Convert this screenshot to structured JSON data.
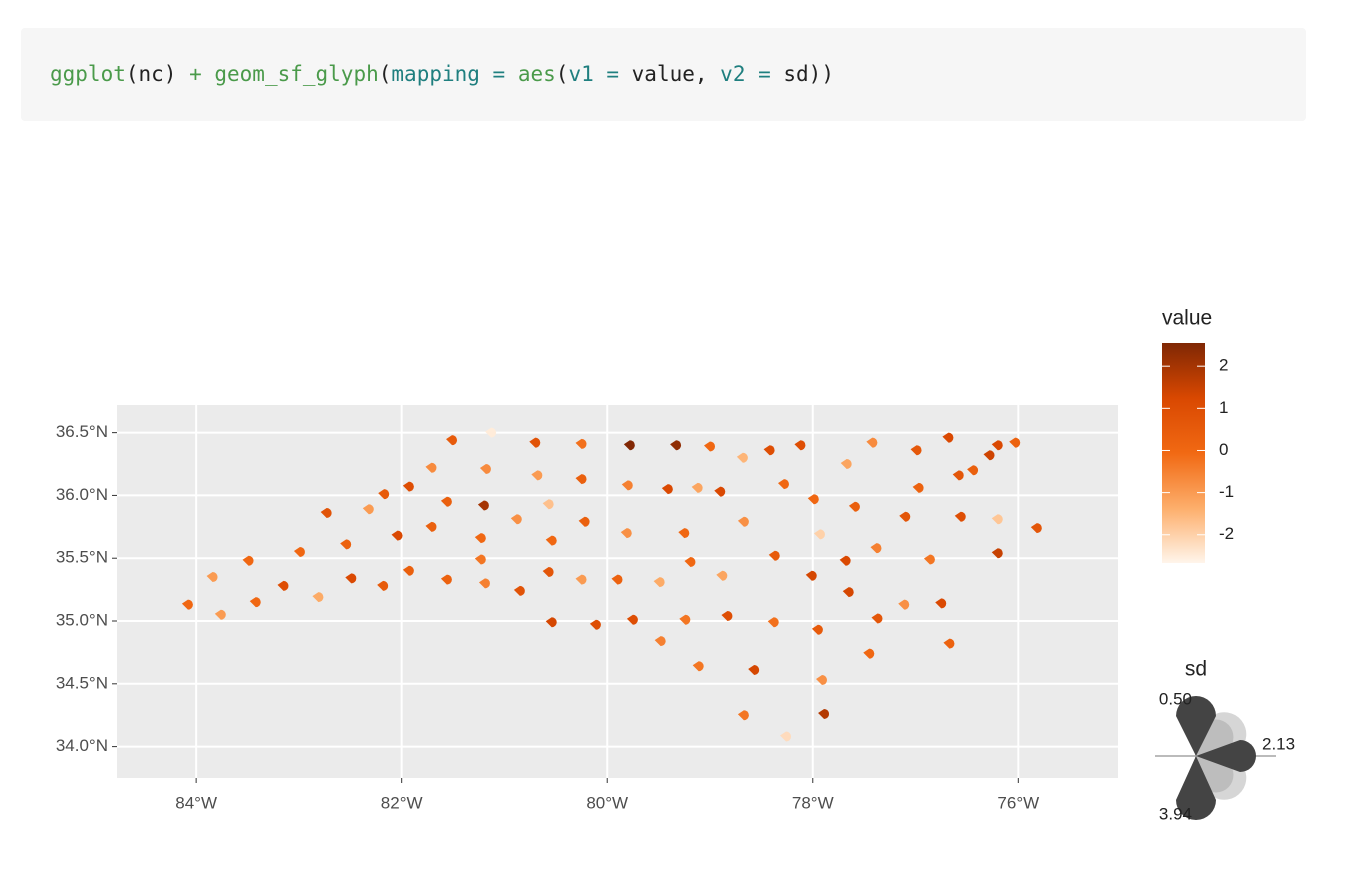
{
  "code": [
    "ggplot",
    "(nc) ",
    "+ ",
    "geom_sf_glyph",
    "(",
    "mapping = ",
    "aes",
    "(",
    "v1 = ",
    "value, ",
    "v2 = ",
    "sd))"
  ],
  "chart_data": {
    "type": "scatter",
    "x": [
      -84.08,
      -83.84,
      -83.76,
      -83.49,
      -83.42,
      -83.15,
      -82.99,
      -82.81,
      -82.73,
      -82.54,
      -82.49,
      -82.32,
      -82.17,
      -82.18,
      -82.04,
      -81.93,
      -81.93,
      -81.71,
      -81.71,
      -81.56,
      -81.56,
      -81.51,
      -81.2,
      -81.23,
      -81.23,
      -81.19,
      -81.18,
      -81.13,
      -80.88,
      -80.85,
      -80.7,
      -80.68,
      -80.57,
      -80.57,
      -80.54,
      -80.54,
      -80.25,
      -80.25,
      -80.25,
      -80.22,
      -80.11,
      -79.9,
      -79.81,
      -79.8,
      -79.78,
      -79.75,
      -79.49,
      -79.48,
      -79.41,
      -79.33,
      -79.25,
      -79.24,
      -79.19,
      -79.12,
      -79.11,
      -79.0,
      -78.9,
      -78.88,
      -78.83,
      -78.68,
      -78.67,
      -78.67,
      -78.57,
      -78.42,
      -78.38,
      -78.37,
      -78.28,
      -78.26,
      -78.12,
      -78.01,
      -77.99,
      -77.95,
      -77.93,
      -77.91,
      -77.89,
      -77.68,
      -77.67,
      -77.65,
      -77.59,
      -77.45,
      -77.42,
      -77.38,
      -77.37,
      -77.1,
      -77.11,
      -76.99,
      -76.97,
      -76.86,
      -76.75,
      -76.68,
      -76.67,
      -76.58,
      -76.56,
      -76.44,
      -76.28,
      -76.2,
      -76.2,
      -76.2,
      -76.03,
      -75.82
    ],
    "y": [
      35.13,
      35.35,
      35.05,
      35.48,
      35.15,
      35.28,
      35.55,
      35.19,
      35.86,
      35.61,
      35.34,
      35.89,
      36.01,
      35.28,
      35.68,
      36.07,
      35.4,
      36.22,
      35.75,
      35.95,
      35.33,
      36.44,
      35.92,
      35.66,
      35.49,
      35.3,
      36.21,
      36.5,
      35.81,
      35.24,
      36.42,
      36.16,
      35.93,
      35.39,
      35.64,
      34.99,
      35.33,
      36.41,
      36.13,
      35.79,
      34.97,
      35.33,
      35.7,
      36.08,
      36.4,
      35.01,
      35.31,
      34.84,
      36.05,
      36.4,
      35.7,
      35.01,
      35.47,
      36.06,
      34.64,
      36.39,
      36.03,
      35.36,
      35.04,
      36.3,
      35.79,
      34.25,
      34.61,
      36.36,
      34.99,
      35.52,
      36.09,
      34.08,
      36.4,
      35.36,
      35.97,
      34.93,
      35.69,
      34.53,
      34.26,
      35.48,
      36.25,
      35.23,
      35.91,
      34.74,
      36.42,
      35.58,
      35.02,
      35.83,
      35.13,
      36.36,
      36.06,
      35.49,
      35.14,
      36.46,
      34.82,
      36.16,
      35.83,
      36.2,
      36.32,
      36.4,
      35.54,
      35.81,
      36.42,
      35.74
    ],
    "values": [
      0,
      -1,
      -1,
      0,
      0,
      1,
      0,
      -1.3,
      0.8,
      0.2,
      1.2,
      -1,
      0.5,
      0.5,
      1.2,
      1,
      0.3,
      -0.7,
      0.3,
      0.3,
      0.2,
      0.5,
      2,
      0,
      -0.3,
      -0.5,
      -0.7,
      -2.5,
      -0.8,
      0.8,
      0.8,
      -1,
      -1.7,
      0.7,
      0,
      1.3,
      -1,
      -0.2,
      0.3,
      0.3,
      1,
      0.2,
      -0.8,
      -0.5,
      2.5,
      1,
      -1.3,
      -0.5,
      1.2,
      2.3,
      0,
      -0.3,
      0,
      -1.2,
      -0.3,
      0,
      1.2,
      -1.2,
      1,
      -1.5,
      -0.8,
      -0.3,
      1.3,
      1,
      -0.2,
      0.5,
      0,
      -2.2,
      1,
      1.3,
      0,
      0.5,
      -2,
      -0.8,
      1.8,
      1.2,
      -1.2,
      1.3,
      0.3,
      0,
      -0.7,
      -0.5,
      0.7,
      0.7,
      -0.8,
      0.6,
      0.2,
      -0.3,
      1.2,
      1.2,
      0.2,
      0.7,
      1,
      0.3,
      1.4,
      1.2,
      1.5,
      -1.8,
      0.2,
      0.7
    ],
    "xlim": [
      -84.77,
      -75.03
    ],
    "ylim": [
      33.75,
      36.72
    ],
    "xticks": [
      {
        "value": -84,
        "label": "84°W"
      },
      {
        "value": -82,
        "label": "82°W"
      },
      {
        "value": -80,
        "label": "80°W"
      },
      {
        "value": -78,
        "label": "78°W"
      },
      {
        "value": -76,
        "label": "76°W"
      }
    ],
    "yticks": [
      {
        "value": 34,
        "label": "34.0°N"
      },
      {
        "value": 34.5,
        "label": "34.5°N"
      },
      {
        "value": 35,
        "label": "35.0°N"
      },
      {
        "value": 35.5,
        "label": "35.5°N"
      },
      {
        "value": 36,
        "label": "36.0°N"
      },
      {
        "value": 36.5,
        "label": "36.5°N"
      }
    ],
    "grid": true,
    "color_legend": {
      "title": "value",
      "lim": [
        -2.67,
        2.55
      ],
      "ticks": [
        2,
        1,
        0,
        -1,
        -2
      ],
      "colors": [
        "#fff5eb",
        "#fdae6b",
        "#f16913",
        "#d94801",
        "#7f2704"
      ]
    },
    "size_legend": {
      "title": "sd",
      "values": [
        {
          "value": 0.5,
          "label": "0.50"
        },
        2.13,
        3.94
      ]
    }
  }
}
